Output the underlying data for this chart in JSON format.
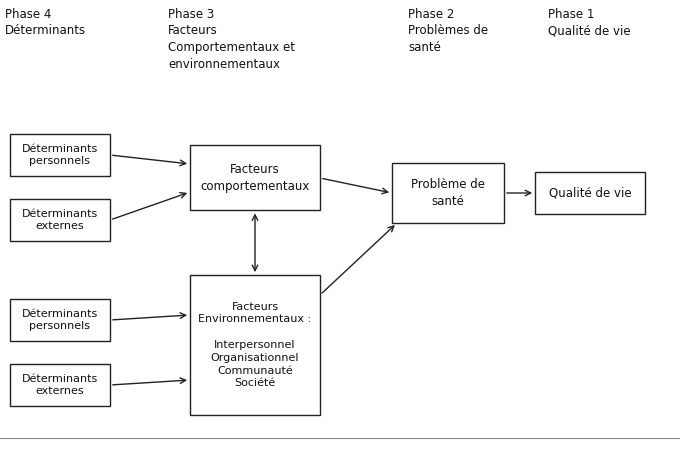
{
  "bg_color": "#ffffff",
  "box_color": "#ffffff",
  "box_edge_color": "#222222",
  "text_color": "#111111",
  "arrow_color": "#222222",
  "header_phase4": "Phase 4\nDéterminants",
  "header_phase3": "Phase 3\nFacteurs\nComportementaux et\nenvironnementaux",
  "header_phase2": "Phase 2\nProblèmes de\nsanté",
  "header_phase1": "Phase 1\nQualité de vie",
  "box_det_pers1": "Déterminants\npersonnels",
  "box_det_ext1": "Déterminants\nexternes",
  "box_det_pers2": "Déterminants\npersonnels",
  "box_det_ext2": "Déterminants\nexternes",
  "box_facteurs_comp": "Facteurs\ncomportementaux",
  "box_facteurs_env": "Facteurs\nEnvironnementaux :\n\nInterpersonnel\nOrganisationnel\nCommunauté\nSociété",
  "box_probleme": "Problème de\nsanté",
  "box_qualite": "Qualité de vie",
  "figsize": [
    6.8,
    4.69
  ],
  "dpi": 100
}
